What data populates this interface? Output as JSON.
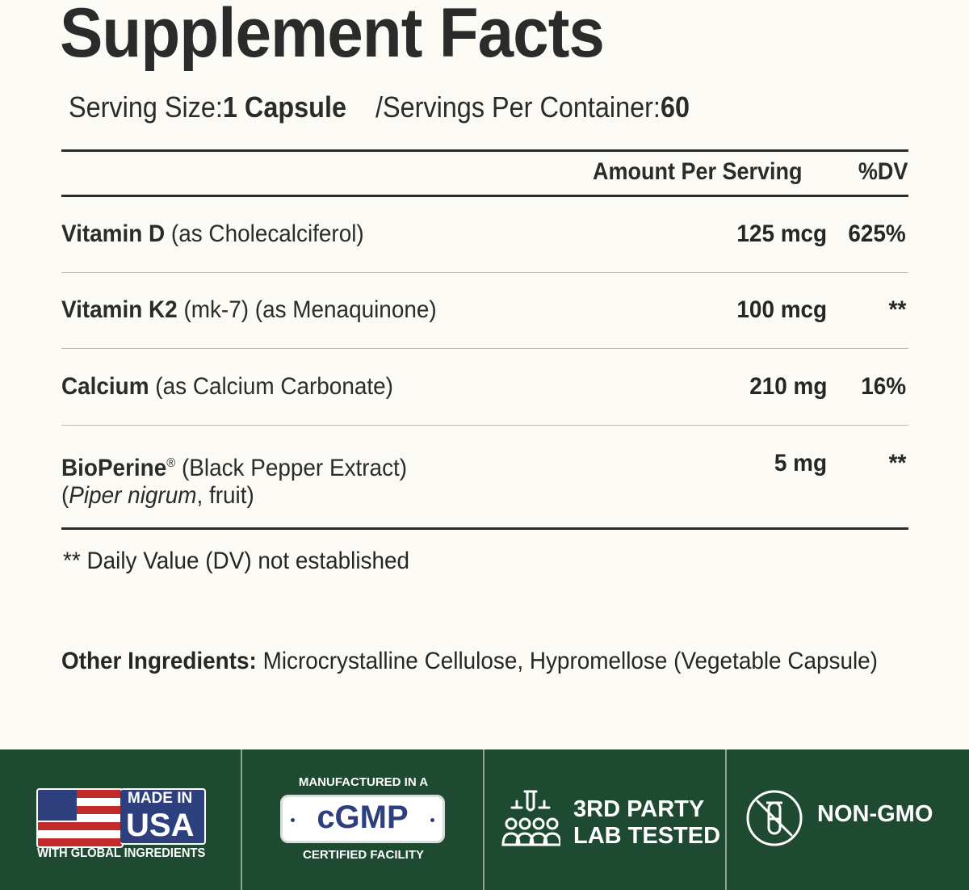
{
  "title": "Supplement Facts",
  "serving": {
    "size_label": "Serving Size:",
    "size_value": "1 Capsule",
    "per_container_label": "/Servings Per Container:",
    "per_container_value": "60"
  },
  "table": {
    "headers": {
      "amount": "Amount Per Serving",
      "dv": "%DV"
    },
    "rows": [
      {
        "name": "Vitamin D",
        "detail": "(as Cholecalciferol)",
        "amount": "125 mcg",
        "dv": "625%"
      },
      {
        "name": "Vitamin K2",
        "detail": "(mk-7) (as Menaquinone)",
        "amount": "100 mcg",
        "dv": "**"
      },
      {
        "name": "Calcium",
        "detail": "(as Calcium Carbonate)",
        "amount": "210 mg",
        "dv": "16%"
      },
      {
        "name": "BioPerine",
        "reg_mark": "®",
        "detail": "(Black Pepper Extract)",
        "detail_line2_open": "(",
        "detail_line2_italic": "Piper nigrum",
        "detail_line2_rest": ", fruit)",
        "amount": "5 mg",
        "dv": "**"
      }
    ]
  },
  "footnote": "** Daily Value (DV) not established",
  "other_ingredients": {
    "label": "Other Ingredients:",
    "value": "Microcrystalline Cellulose, Hypromellose (Vegetable Capsule)"
  },
  "badges": {
    "usa": {
      "made_in": "MADE IN",
      "country": "USA",
      "sub": "WITH GLOBAL INGREDIENTS",
      "icon": "us-flag-icon"
    },
    "cgmp": {
      "top": "MANUFACTURED IN A",
      "mark": "cGMP",
      "bottom": "CERTIFIED FACILITY"
    },
    "lab": {
      "line1": "3RD PARTY",
      "line2": "LAB TESTED",
      "icon": "lab-test-icon"
    },
    "gmo": {
      "text": "NON-GMO",
      "icon": "no-gmo-icon"
    }
  },
  "colors": {
    "background": "#fbfaf5",
    "text": "#2b2b2b",
    "banner": "#1f4a32",
    "navy": "#2d3f7c",
    "flag_red": "#c22a2a"
  }
}
